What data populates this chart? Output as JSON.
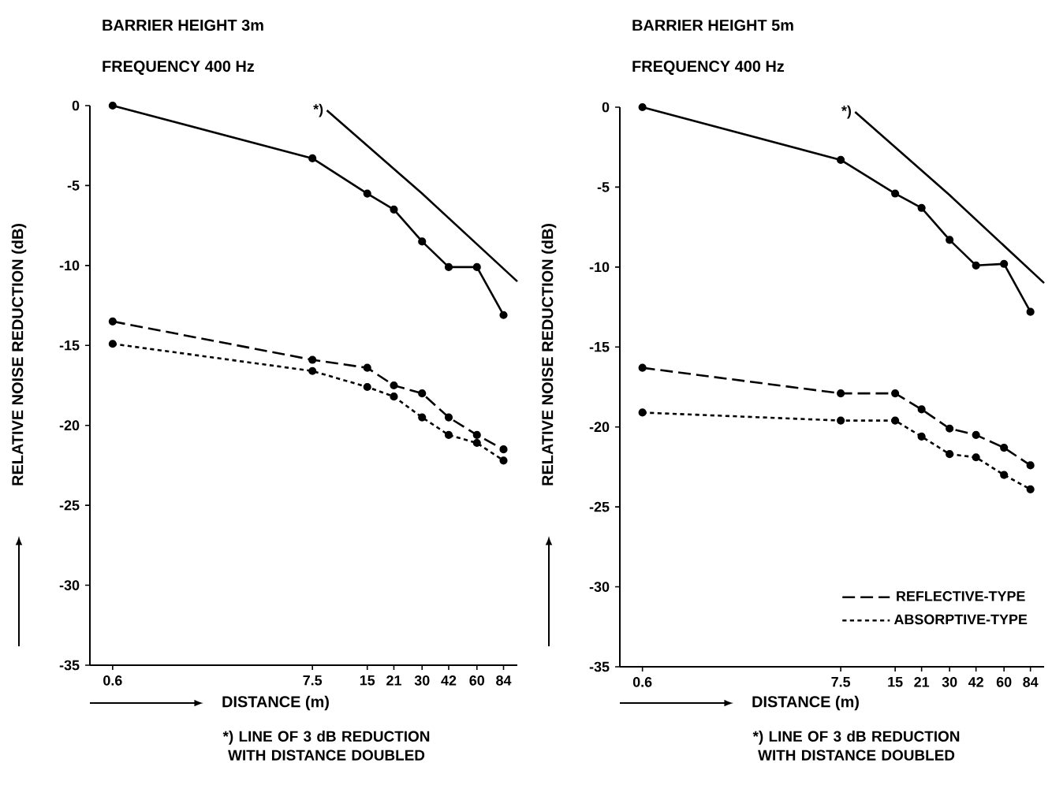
{
  "chart_data": [
    {
      "type": "line",
      "title": "BARRIER HEIGHT 3m",
      "subtitle": "FREQUENCY 400 Hz",
      "xlabel": "DISTANCE (m)",
      "ylabel": "RELATIVE NOISE REDUCTION (dB)",
      "log": "x",
      "x": [
        0.6,
        7.5,
        15,
        21,
        30,
        42,
        60,
        84
      ],
      "xlim": [
        0.45,
        100
      ],
      "xticks": [
        0.6,
        7.5,
        15,
        21,
        30,
        42,
        60,
        84
      ],
      "ylim": [
        -35,
        0
      ],
      "yticks": [
        0,
        -5,
        -10,
        -15,
        -20,
        -25,
        -30,
        -35
      ],
      "legend": false,
      "series": [
        {
          "color": "#000000",
          "marker": "circle",
          "line_style": "solid",
          "values": [
            0,
            -3.3,
            -5.5,
            -6.5,
            -8.5,
            -10.1,
            -10.1,
            -13.1
          ]
        },
        {
          "color": "#000000",
          "marker": "circle",
          "line_style": "dashed",
          "values": [
            -13.5,
            -15.9,
            -16.4,
            -17.5,
            -18.0,
            -19.5,
            -20.6,
            -21.5
          ]
        },
        {
          "color": "#000000",
          "marker": "circle",
          "line_style": "dotted",
          "values": [
            -14.9,
            -16.6,
            -17.6,
            -18.2,
            -19.5,
            -20.6,
            -21.1,
            -22.2
          ]
        },
        {
          "color": "#000000",
          "marker": "none",
          "line_style": "solid",
          "x": [
            9,
            30,
            100
          ],
          "values": [
            -0.3,
            -5.5,
            -11
          ]
        }
      ],
      "annotations": [
        {
          "text": "*)",
          "x": 9,
          "y": -0.3
        },
        "*) LINE OF 3 dB REDUCTION WITH DISTANCE DOUBLED"
      ]
    },
    {
      "type": "line",
      "title": "BARRIER HEIGHT 5m",
      "subtitle": "FREQUENCY 400 Hz",
      "xlabel": "DISTANCE (m)",
      "ylabel": "RELATIVE NOISE REDUCTION (dB)",
      "log": "x",
      "x": [
        0.6,
        7.5,
        15,
        21,
        30,
        42,
        60,
        84
      ],
      "xlim": [
        0.45,
        100
      ],
      "xticks": [
        0.6,
        7.5,
        15,
        21,
        30,
        42,
        60,
        84
      ],
      "ylim": [
        -35,
        0
      ],
      "yticks": [
        0,
        -5,
        -10,
        -15,
        -20,
        -25,
        -30,
        -35
      ],
      "legend": "bottom right",
      "series": [
        {
          "color": "#000000",
          "marker": "circle",
          "line_style": "solid",
          "values": [
            0,
            -3.3,
            -5.4,
            -6.3,
            -8.3,
            -9.9,
            -9.8,
            -12.8
          ]
        },
        {
          "name": "REFLECTIVE-TYPE",
          "color": "#000000",
          "marker": "circle",
          "line_style": "dashed",
          "values": [
            -16.3,
            -17.9,
            -17.9,
            -18.9,
            -20.1,
            -20.5,
            -21.3,
            -22.4
          ]
        },
        {
          "name": "ABSORPTIVE-TYPE",
          "color": "#000000",
          "marker": "circle",
          "line_style": "dotted",
          "values": [
            -19.1,
            -19.6,
            -19.6,
            -20.6,
            -21.7,
            -21.9,
            -23.0,
            -23.9
          ]
        },
        {
          "color": "#000000",
          "marker": "none",
          "line_style": "solid",
          "x": [
            9,
            30,
            100
          ],
          "values": [
            -0.3,
            -5.5,
            -11
          ]
        }
      ],
      "annotations": [
        {
          "text": "*)",
          "x": 9,
          "y": -0.3
        },
        "*) LINE OF 3 dB REDUCTION WITH DISTANCE DOUBLED"
      ]
    }
  ]
}
